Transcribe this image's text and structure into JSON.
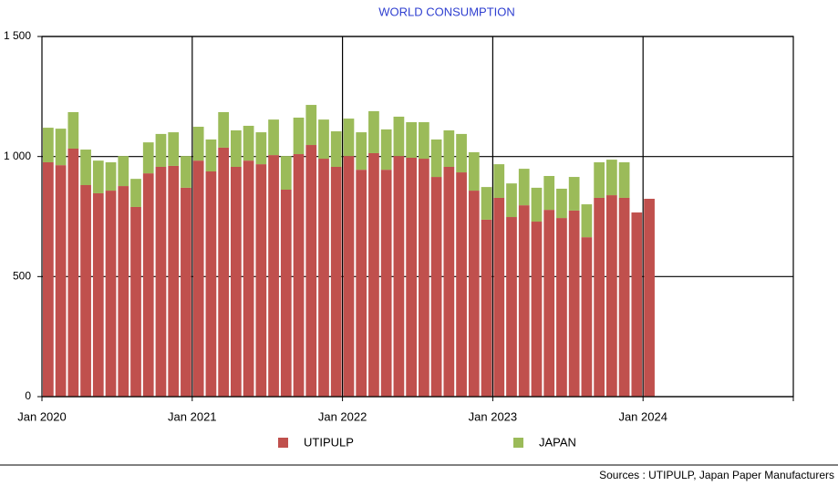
{
  "chart_data": {
    "type": "bar",
    "stacked": true,
    "title": "WORLD CONSUMPTION",
    "source": "Sources : UTIPULP, Japan Paper Manufacturers",
    "categories": [
      "Jan 2020",
      null,
      null,
      null,
      null,
      null,
      null,
      null,
      null,
      null,
      null,
      null,
      "Jan 2021",
      null,
      null,
      null,
      null,
      null,
      null,
      null,
      null,
      null,
      null,
      null,
      "Jan 2022",
      null,
      null,
      null,
      null,
      null,
      null,
      null,
      null,
      null,
      null,
      null,
      "Jan 2023",
      null,
      null,
      null,
      null,
      null,
      null,
      null,
      null,
      null,
      null,
      null,
      "Jan 2024",
      null,
      null,
      null,
      null,
      null,
      null,
      null,
      null,
      null,
      null,
      null
    ],
    "series": [
      {
        "name": "UTIPULP",
        "color": "#c0504d",
        "values": [
          976,
          964,
          1033,
          881,
          847,
          858,
          877,
          790,
          930,
          957,
          961,
          870,
          983,
          938,
          1037,
          957,
          983,
          968,
          1006,
          862,
          1010,
          1048,
          991,
          957,
          1002,
          945,
          1014,
          945,
          1002,
          995,
          991,
          915,
          957,
          934,
          858,
          737,
          828,
          748,
          797,
          729,
          778,
          744,
          775,
          664,
          828,
          839,
          828,
          767,
          824,
          null,
          null,
          null,
          null,
          null,
          null,
          null,
          null,
          null,
          null,
          null
        ]
      },
      {
        "name": "JAPAN",
        "color": "#9bbb59",
        "values": [
          144,
          152,
          152,
          148,
          136,
          118,
          125,
          117,
          129,
          137,
          140,
          132,
          141,
          133,
          148,
          152,
          145,
          133,
          148,
          140,
          152,
          167,
          163,
          148,
          156,
          156,
          175,
          168,
          164,
          148,
          152,
          156,
          152,
          160,
          160,
          136,
          140,
          140,
          152,
          141,
          141,
          122,
          140,
          137,
          148,
          148,
          148,
          null,
          null,
          null,
          null,
          null,
          null,
          null,
          null,
          null,
          null,
          null,
          null,
          null
        ]
      }
    ],
    "ylim": [
      0,
      1500
    ],
    "yticks": [
      0,
      500,
      {
        "value": 1000,
        "label": "1 000"
      },
      {
        "value": 1500,
        "label": "1 500"
      }
    ],
    "grid": true,
    "legend": "bottom"
  }
}
